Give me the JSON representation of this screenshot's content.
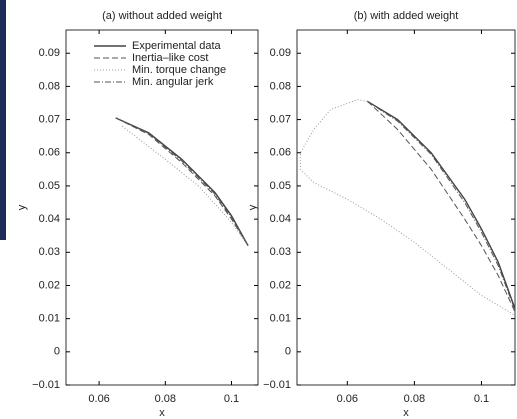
{
  "chart_data": [
    {
      "type": "line",
      "title": "(a) without added weight",
      "xlabel": "x",
      "ylabel": "y",
      "xlim": [
        0.05,
        0.108
      ],
      "xticks": [
        0.06,
        0.08,
        0.1
      ],
      "ylim": [
        -0.01,
        0.097
      ],
      "yticks": [
        {
          "value": -0.01,
          "label": "−0.01"
        },
        0,
        0.01,
        0.02,
        0.03,
        0.04,
        0.05,
        0.06,
        0.07,
        0.08,
        0.09
      ],
      "legend": "upper left",
      "series": [
        {
          "name": "Experimental data",
          "color": "#444444",
          "style": "solid",
          "x": [
            0.065,
            0.075,
            0.085,
            0.095,
            0.1,
            0.105
          ],
          "values": [
            0.0705,
            0.066,
            0.058,
            0.048,
            0.041,
            0.032
          ]
        },
        {
          "name": "Inertia–like cost",
          "color": "#555555",
          "style": "dashed",
          "x": [
            0.065,
            0.075,
            0.085,
            0.095,
            0.1,
            0.105
          ],
          "values": [
            0.0705,
            0.0655,
            0.057,
            0.047,
            0.04,
            0.032
          ]
        },
        {
          "name": "Min. torque change",
          "color": "#999999",
          "style": "dotted",
          "x": [
            0.067,
            0.08,
            0.09,
            0.1,
            0.105
          ],
          "values": [
            0.068,
            0.058,
            0.05,
            0.039,
            0.032
          ]
        },
        {
          "name": "Min. angular jerk",
          "color": "#555555",
          "style": "dashdot",
          "x": [
            0.065,
            0.075,
            0.085,
            0.095,
            0.1,
            0.105
          ],
          "values": [
            0.0705,
            0.0658,
            0.0575,
            0.0475,
            0.0405,
            0.032
          ]
        }
      ]
    },
    {
      "type": "line",
      "title": "(b) with added weight",
      "xlabel": "x",
      "ylabel": "y",
      "xlim": [
        0.045,
        0.11
      ],
      "xticks": [
        0.06,
        0.08,
        0.1
      ],
      "ylim": [
        -0.01,
        0.097
      ],
      "yticks": [
        {
          "value": -0.01,
          "label": "−0.01"
        },
        0,
        0.01,
        0.02,
        0.03,
        0.04,
        0.05,
        0.06,
        0.07,
        0.08,
        0.09
      ],
      "series": [
        {
          "color": "#444444",
          "style": "solid",
          "x": [
            0.066,
            0.075,
            0.085,
            0.095,
            0.1,
            0.105,
            0.11
          ],
          "values": [
            0.0755,
            0.07,
            0.06,
            0.046,
            0.037,
            0.027,
            0.013
          ]
        },
        {
          "color": "#555555",
          "style": "dashed",
          "x": [
            0.066,
            0.075,
            0.085,
            0.095,
            0.1,
            0.105,
            0.11
          ],
          "values": [
            0.0755,
            0.067,
            0.055,
            0.04,
            0.032,
            0.023,
            0.012
          ]
        },
        {
          "color": "#999999",
          "style": "dotted",
          "x": [
            0.066,
            0.063,
            0.055,
            0.05,
            0.046,
            0.046,
            0.05,
            0.06,
            0.07,
            0.08,
            0.09,
            0.1,
            0.11
          ],
          "values": [
            0.0755,
            0.076,
            0.073,
            0.067,
            0.06,
            0.055,
            0.051,
            0.046,
            0.04,
            0.033,
            0.025,
            0.017,
            0.011
          ]
        },
        {
          "color": "#555555",
          "style": "dashdot",
          "x": [
            0.066,
            0.075,
            0.085,
            0.095,
            0.1,
            0.105,
            0.11
          ],
          "values": [
            0.0755,
            0.0695,
            0.0595,
            0.045,
            0.036,
            0.026,
            0.0125
          ]
        }
      ]
    }
  ]
}
